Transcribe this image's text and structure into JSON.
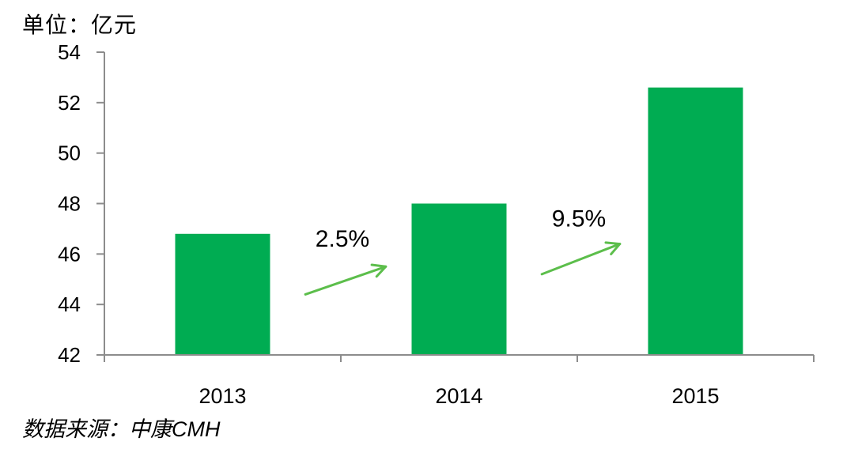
{
  "chart_data": {
    "type": "bar",
    "unit_label": "单位：亿元",
    "source": "数据来源：中康CMH",
    "categories": [
      "2013",
      "2014",
      "2015"
    ],
    "values": [
      46.8,
      48.0,
      52.6
    ],
    "ylim": [
      42,
      54
    ],
    "yticks": [
      42,
      44,
      46,
      48,
      50,
      52,
      54
    ],
    "grid": false,
    "legend": false,
    "annotations": [
      {
        "label": "2.5%",
        "between": [
          0,
          1
        ],
        "label_value": 46.6,
        "arrow_from": {
          "frac": 0.35,
          "value": 44.4
        },
        "arrow_to": {
          "frac": 0.69,
          "value": 45.5
        }
      },
      {
        "label": "9.5%",
        "between": [
          1,
          2
        ],
        "label_value": 47.4,
        "arrow_from": {
          "frac": 0.35,
          "value": 45.2
        },
        "arrow_to": {
          "frac": 0.68,
          "value": 46.4
        }
      }
    ],
    "colors": {
      "bar": "#00AC52",
      "arrow": "#5CBE4B",
      "axis": "#8C8C8C",
      "text": "#000000"
    }
  }
}
